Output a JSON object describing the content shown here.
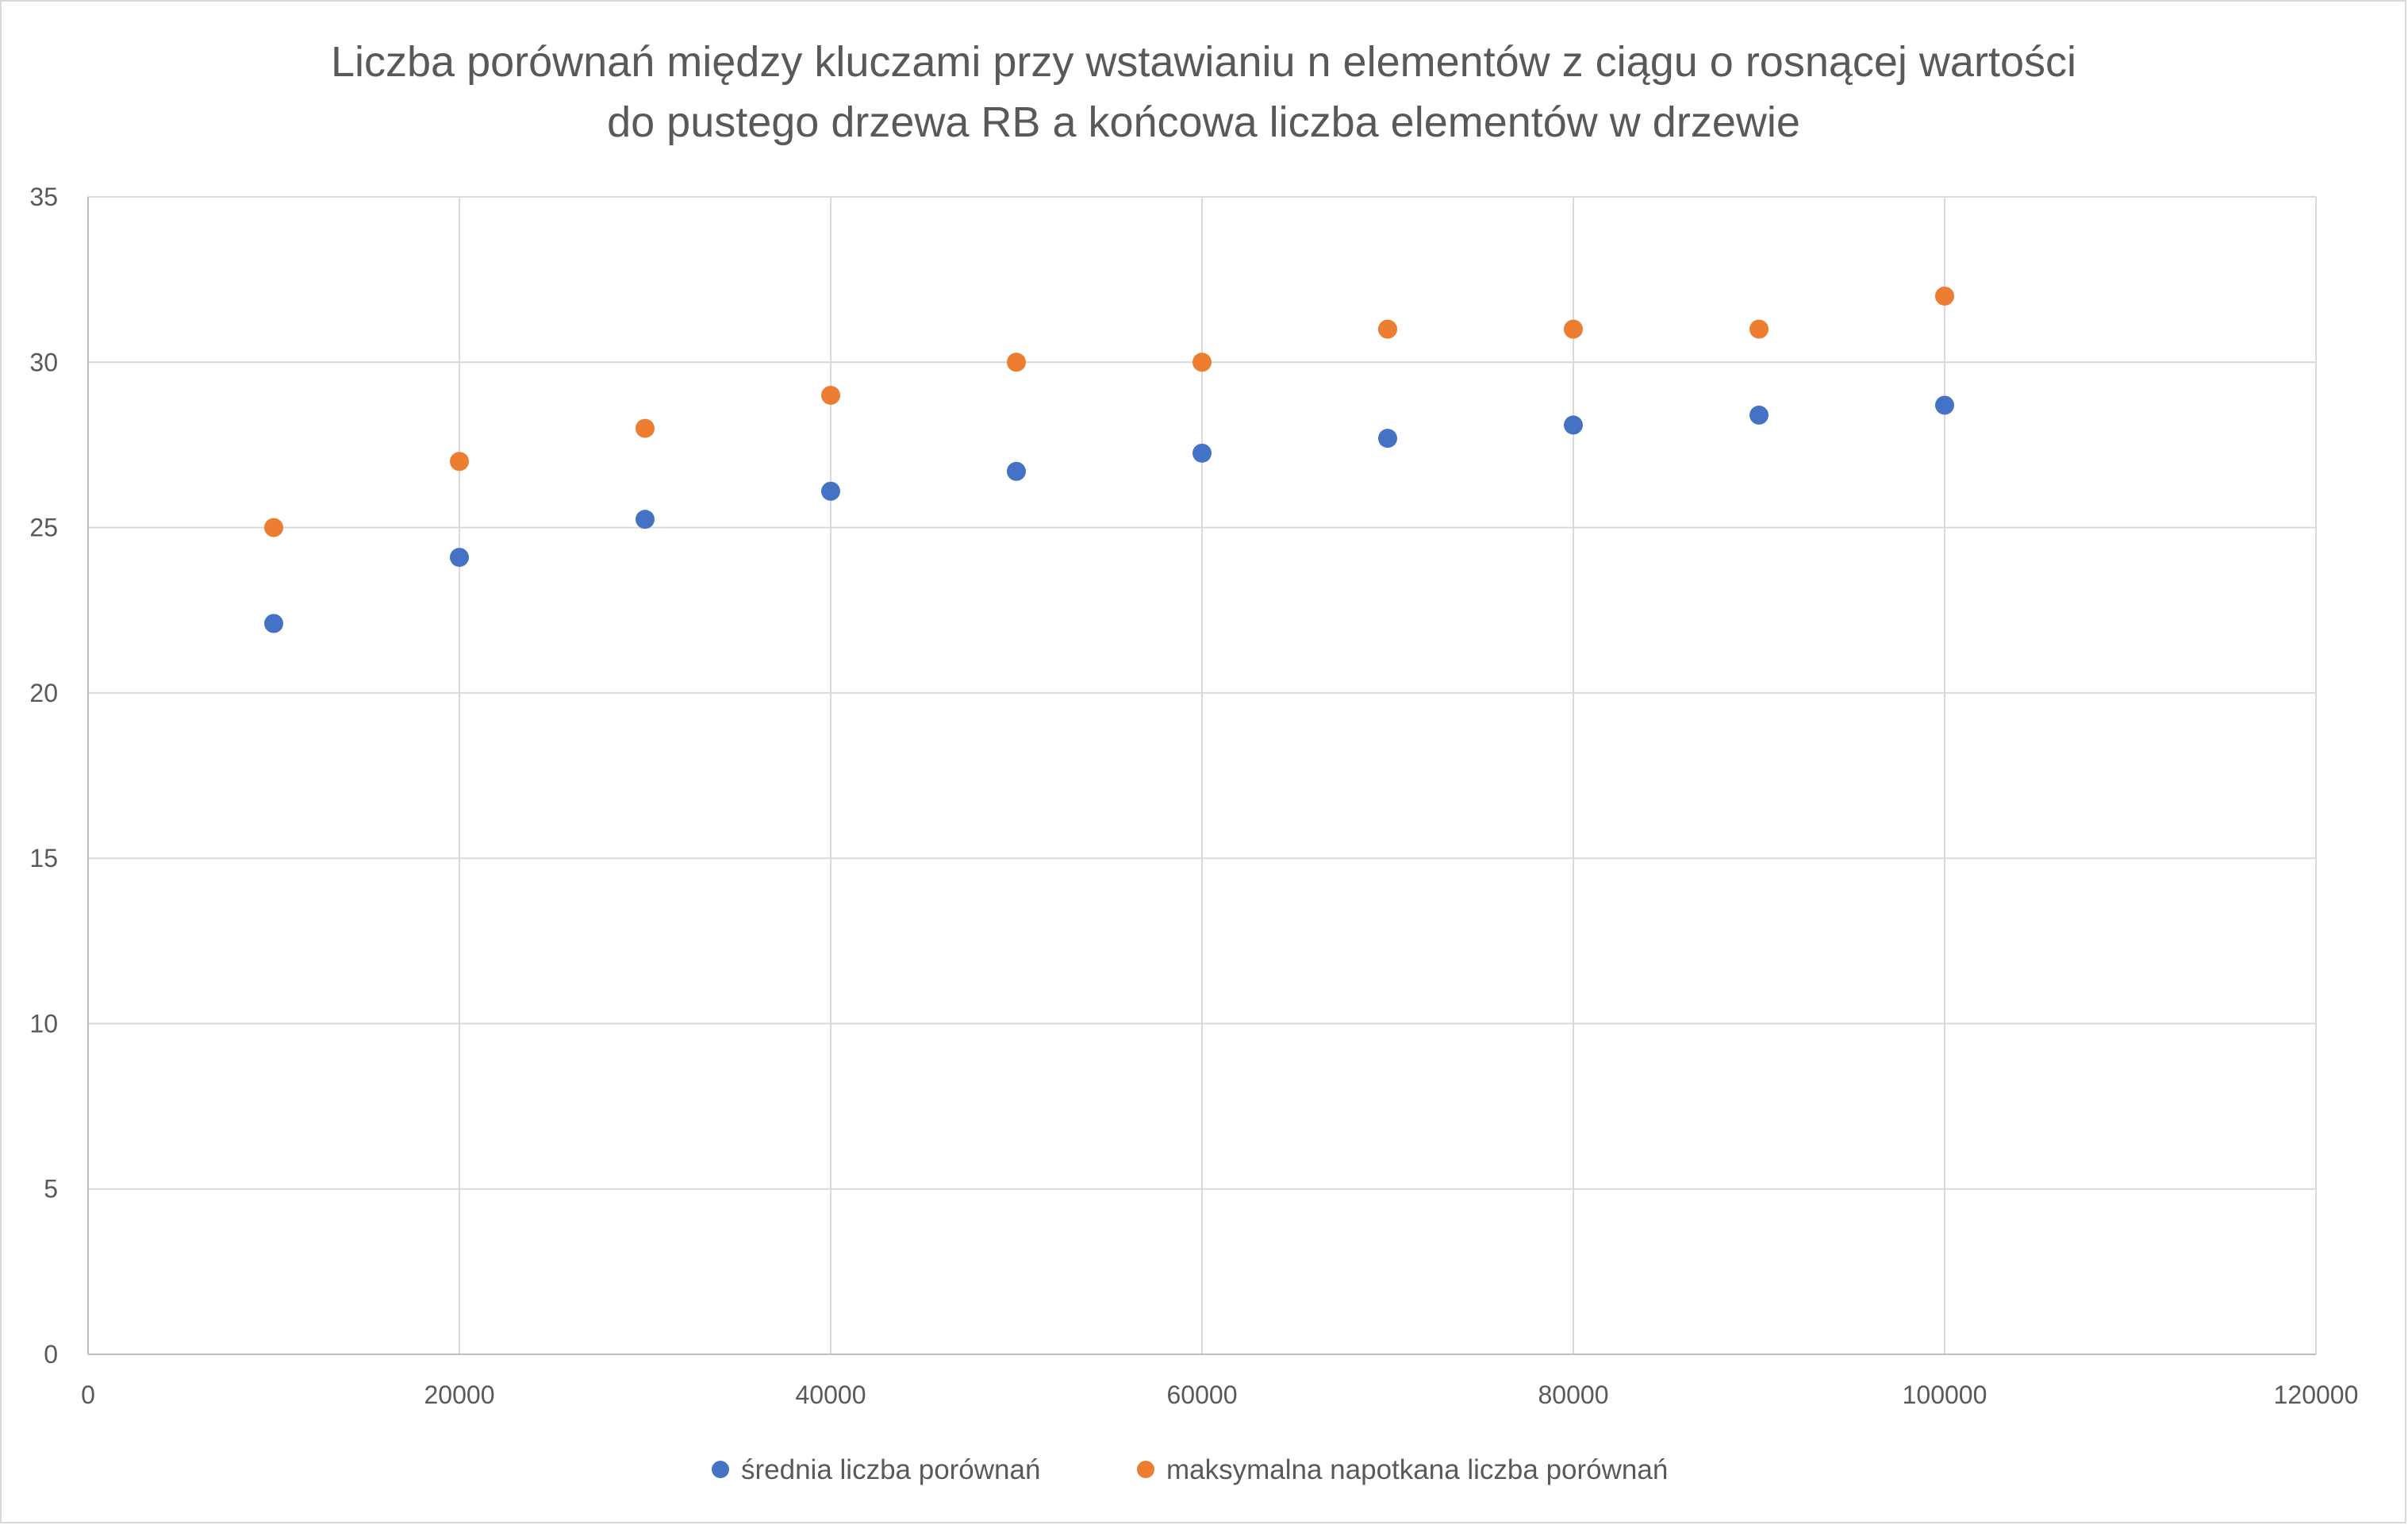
{
  "chart_data": {
    "type": "scatter",
    "title_lines": [
      "Liczba porównań między kluczami przy wstawianiu n elementów z ciągu o rosnącej wartości",
      "do pustego drzewa RB a końcowa liczba elementów w drzewie"
    ],
    "xlabel": "",
    "ylabel": "",
    "xlim": [
      0,
      120000
    ],
    "ylim": [
      0,
      35
    ],
    "x_ticks": [
      0,
      20000,
      40000,
      60000,
      80000,
      100000,
      120000
    ],
    "y_ticks": [
      0,
      5,
      10,
      15,
      20,
      25,
      30,
      35
    ],
    "grid": true,
    "legend_position": "bottom",
    "series": [
      {
        "name": "średnia liczba porównań",
        "color": "#4472c4",
        "x": [
          10000,
          20000,
          30000,
          40000,
          50000,
          60000,
          70000,
          80000,
          90000,
          100000
        ],
        "y": [
          22.1,
          24.1,
          25.25,
          26.1,
          26.7,
          27.25,
          27.7,
          28.1,
          28.4,
          28.7
        ]
      },
      {
        "name": "maksymalna napotkana liczba porównań",
        "color": "#ed7d31",
        "x": [
          10000,
          20000,
          30000,
          40000,
          50000,
          60000,
          70000,
          80000,
          90000,
          100000
        ],
        "y": [
          25,
          27,
          28,
          29,
          30,
          30,
          31,
          31,
          31,
          32
        ]
      }
    ]
  }
}
